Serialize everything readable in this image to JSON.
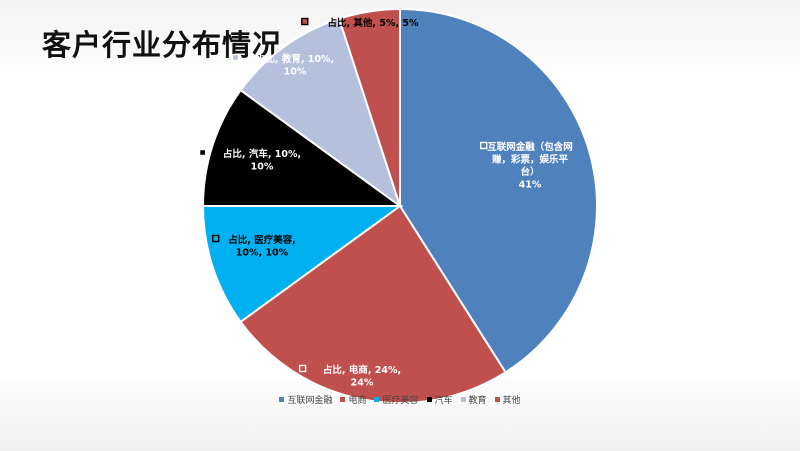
{
  "page": {
    "title": "客户行业分布情况"
  },
  "chart_data": {
    "type": "pie",
    "title": "",
    "slices": [
      {
        "name": "互联网金融",
        "value": 41,
        "color": "#4f81bd",
        "label": [
          "互联网金融（包含网",
          "赚，彩票，娱乐平",
          "台）",
          "41%"
        ]
      },
      {
        "name": "电商",
        "value": 24,
        "color": "#c0504d",
        "label": [
          "占比, 电商, 24%,",
          "24%"
        ]
      },
      {
        "name": "医疗美容",
        "value": 10,
        "color": "#00b0f0",
        "label": [
          "占比, 医疗美容,",
          "10%, 10%"
        ]
      },
      {
        "name": "汽车",
        "value": 10,
        "color": "#000000",
        "label": [
          "占比, 汽车, 10%,",
          "10%"
        ]
      },
      {
        "name": "教育",
        "value": 10,
        "color": "#b4c0dc",
        "label": [
          "占比, 教育, 10%,",
          "10%"
        ]
      },
      {
        "name": "其他",
        "value": 5,
        "color": "#c0504d",
        "label": [
          "占比, 其他, 5%, 5%"
        ]
      }
    ],
    "legend_position": "bottom"
  }
}
